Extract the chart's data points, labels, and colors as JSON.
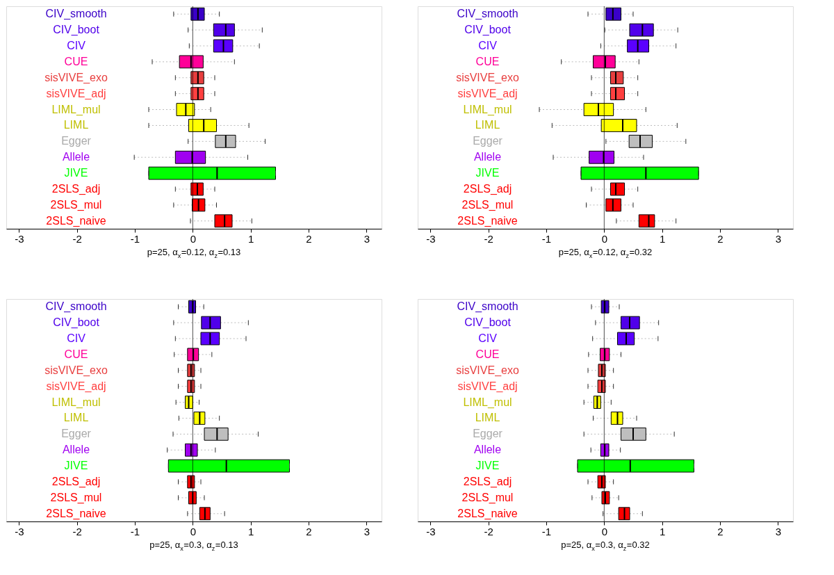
{
  "chart_data": [
    {
      "type": "box",
      "orientation": "horizontal",
      "categories": [
        "CIV_smooth",
        "CIV_boot",
        "CIV",
        "CUE",
        "sisVIVE_exo",
        "sisVIVE_adj",
        "LIML_mul",
        "LIML",
        "Egger",
        "Allele",
        "JIVE",
        "2SLS_adj",
        "2SLS_mul",
        "2SLS_naive"
      ],
      "colors": [
        "#3a00c8",
        "#5000ea",
        "#5a00ff",
        "#ff0098",
        "#e83e3e",
        "#ff4040",
        "#ffff00",
        "#ffff00",
        "#bebebe",
        "#a000f0",
        "#00ff00",
        "#ff0000",
        "#ff0000",
        "#ff0000"
      ],
      "boxes": [
        {
          "low": -0.33,
          "q1": -0.03,
          "median": 0.09,
          "q3": 0.2,
          "high": 0.46
        },
        {
          "low": -0.08,
          "q1": 0.36,
          "median": 0.57,
          "q3": 0.72,
          "high": 1.2
        },
        {
          "low": -0.06,
          "q1": 0.36,
          "median": 0.53,
          "q3": 0.69,
          "high": 1.15
        },
        {
          "low": -0.7,
          "q1": -0.23,
          "median": -0.03,
          "q3": 0.18,
          "high": 0.72
        },
        {
          "low": -0.3,
          "q1": -0.03,
          "median": 0.09,
          "q3": 0.19,
          "high": 0.38
        },
        {
          "low": -0.3,
          "q1": -0.03,
          "median": 0.09,
          "q3": 0.19,
          "high": 0.38
        },
        {
          "low": -0.76,
          "q1": -0.28,
          "median": -0.12,
          "q3": 0.03,
          "high": 0.31
        },
        {
          "low": -0.76,
          "q1": -0.07,
          "median": 0.19,
          "q3": 0.41,
          "high": 0.97
        },
        {
          "low": -0.08,
          "q1": 0.39,
          "median": 0.57,
          "q3": 0.74,
          "high": 1.25
        },
        {
          "low": -1.01,
          "q1": -0.3,
          "median": -0.01,
          "q3": 0.22,
          "high": 0.95
        },
        {
          "low": -0.76,
          "q1": -0.76,
          "median": 0.42,
          "q3": 1.43,
          "high": 1.43
        },
        {
          "low": -0.3,
          "q1": -0.03,
          "median": 0.08,
          "q3": 0.18,
          "high": 0.38
        },
        {
          "low": -0.33,
          "q1": -0.01,
          "median": 0.1,
          "q3": 0.21,
          "high": 0.41
        },
        {
          "low": -0.04,
          "q1": 0.38,
          "median": 0.55,
          "q3": 0.68,
          "high": 1.02
        }
      ],
      "xlabel": "p=25, α$_{x}$=0.12, α$_{z}$=0.13",
      "xlim": [
        -3.22,
        3.26
      ],
      "xticks": [
        -3,
        -2,
        -1,
        0,
        1,
        2,
        3
      ],
      "ref_lines": [
        {
          "axis": "x",
          "value": 0,
          "color": "#000000"
        }
      ],
      "grid": false,
      "legend": false
    },
    {
      "type": "box",
      "orientation": "horizontal",
      "categories": [
        "CIV_smooth",
        "CIV_boot",
        "CIV",
        "CUE",
        "sisVIVE_exo",
        "sisVIVE_adj",
        "LIML_mul",
        "LIML",
        "Egger",
        "Allele",
        "JIVE",
        "2SLS_adj",
        "2SLS_mul",
        "2SLS_naive"
      ],
      "colors": [
        "#3a00c8",
        "#5000ea",
        "#5a00ff",
        "#ff0098",
        "#e83e3e",
        "#ff4040",
        "#ffff00",
        "#ffff00",
        "#bebebe",
        "#a000f0",
        "#00ff00",
        "#ff0000",
        "#ff0000",
        "#ff0000"
      ],
      "boxes": [
        {
          "low": -0.28,
          "q1": 0.03,
          "median": 0.15,
          "q3": 0.29,
          "high": 0.5
        },
        {
          "low": 0.01,
          "q1": 0.44,
          "median": 0.66,
          "q3": 0.85,
          "high": 1.27
        },
        {
          "low": -0.06,
          "q1": 0.4,
          "median": 0.58,
          "q3": 0.77,
          "high": 1.24
        },
        {
          "low": -0.74,
          "q1": -0.19,
          "median": 0.02,
          "q3": 0.19,
          "high": 0.6
        },
        {
          "low": -0.22,
          "q1": 0.11,
          "median": 0.2,
          "q3": 0.33,
          "high": 0.58
        },
        {
          "low": -0.22,
          "q1": 0.11,
          "median": 0.2,
          "q3": 0.35,
          "high": 0.58
        },
        {
          "low": -1.12,
          "q1": -0.35,
          "median": -0.1,
          "q3": 0.16,
          "high": 0.72
        },
        {
          "low": -0.9,
          "q1": -0.05,
          "median": 0.32,
          "q3": 0.56,
          "high": 1.26
        },
        {
          "low": 0.03,
          "q1": 0.43,
          "median": 0.62,
          "q3": 0.83,
          "high": 1.41
        },
        {
          "low": -0.88,
          "q1": -0.26,
          "median": -0.01,
          "q3": 0.17,
          "high": 0.68
        },
        {
          "low": -0.4,
          "q1": -0.4,
          "median": 0.72,
          "q3": 1.63,
          "high": 1.63
        },
        {
          "low": -0.22,
          "q1": 0.11,
          "median": 0.2,
          "q3": 0.35,
          "high": 0.58
        },
        {
          "low": -0.31,
          "q1": 0.03,
          "median": 0.15,
          "q3": 0.29,
          "high": 0.5
        },
        {
          "low": 0.21,
          "q1": 0.6,
          "median": 0.77,
          "q3": 0.87,
          "high": 1.24
        }
      ],
      "xlabel": "p=25, α$_{x}$=0.12, α$_{z}$=0.32",
      "xlim": [
        -3.22,
        3.26
      ],
      "xticks": [
        -3,
        -2,
        -1,
        0,
        1,
        2,
        3
      ],
      "ref_lines": [
        {
          "axis": "x",
          "value": 0,
          "color": "#000000"
        }
      ],
      "grid": false,
      "legend": false
    },
    {
      "type": "box",
      "orientation": "horizontal",
      "categories": [
        "CIV_smooth",
        "CIV_boot",
        "CIV",
        "CUE",
        "sisVIVE_exo",
        "sisVIVE_adj",
        "LIML_mul",
        "LIML",
        "Egger",
        "Allele",
        "JIVE",
        "2SLS_adj",
        "2SLS_mul",
        "2SLS_naive"
      ],
      "colors": [
        "#3a00c8",
        "#5000ea",
        "#5a00ff",
        "#ff0098",
        "#e83e3e",
        "#ff4040",
        "#ffff00",
        "#ffff00",
        "#bebebe",
        "#a000f0",
        "#00ff00",
        "#ff0000",
        "#ff0000",
        "#ff0000"
      ],
      "boxes": [
        {
          "low": -0.25,
          "q1": -0.07,
          "median": 0.0,
          "q3": 0.05,
          "high": 0.19
        },
        {
          "low": -0.33,
          "q1": 0.15,
          "median": 0.3,
          "q3": 0.48,
          "high": 0.96
        },
        {
          "low": -0.3,
          "q1": 0.14,
          "median": 0.3,
          "q3": 0.46,
          "high": 0.92
        },
        {
          "low": -0.32,
          "q1": -0.09,
          "median": 0.01,
          "q3": 0.1,
          "high": 0.33
        },
        {
          "low": -0.25,
          "q1": -0.09,
          "median": -0.03,
          "q3": 0.03,
          "high": 0.14
        },
        {
          "low": -0.25,
          "q1": -0.09,
          "median": -0.03,
          "q3": 0.03,
          "high": 0.14
        },
        {
          "low": -0.29,
          "q1": -0.13,
          "median": -0.07,
          "q3": 0.0,
          "high": 0.11
        },
        {
          "low": -0.24,
          "q1": 0.02,
          "median": 0.12,
          "q3": 0.21,
          "high": 0.46
        },
        {
          "low": -0.34,
          "q1": 0.2,
          "median": 0.42,
          "q3": 0.61,
          "high": 1.13
        },
        {
          "low": -0.44,
          "q1": -0.13,
          "median": -0.03,
          "q3": 0.08,
          "high": 0.39
        },
        {
          "low": -0.42,
          "q1": -0.42,
          "median": 0.58,
          "q3": 1.67,
          "high": 1.67
        },
        {
          "low": -0.25,
          "q1": -0.09,
          "median": -0.03,
          "q3": 0.03,
          "high": 0.14
        },
        {
          "low": -0.25,
          "q1": -0.07,
          "median": 0.0,
          "q3": 0.06,
          "high": 0.2
        },
        {
          "low": -0.09,
          "q1": 0.12,
          "median": 0.21,
          "q3": 0.3,
          "high": 0.55
        }
      ],
      "xlabel": "p=25, α$_{x}$=0.3, α$_{z}$=0.13",
      "xlim": [
        -3.22,
        3.26
      ],
      "xticks": [
        -3,
        -2,
        -1,
        0,
        1,
        2,
        3
      ],
      "ref_lines": [
        {
          "axis": "x",
          "value": 0,
          "color": "#000000"
        }
      ],
      "grid": false,
      "legend": false
    },
    {
      "type": "box",
      "orientation": "horizontal",
      "categories": [
        "CIV_smooth",
        "CIV_boot",
        "CIV",
        "CUE",
        "sisVIVE_exo",
        "sisVIVE_adj",
        "LIML_mul",
        "LIML",
        "Egger",
        "Allele",
        "JIVE",
        "2SLS_adj",
        "2SLS_mul",
        "2SLS_naive"
      ],
      "colors": [
        "#3a00c8",
        "#5000ea",
        "#5a00ff",
        "#ff0098",
        "#e83e3e",
        "#ff4040",
        "#ffff00",
        "#ffff00",
        "#bebebe",
        "#a000f0",
        "#00ff00",
        "#ff0000",
        "#ff0000",
        "#ff0000"
      ],
      "boxes": [
        {
          "low": -0.22,
          "q1": -0.05,
          "median": 0.01,
          "q3": 0.08,
          "high": 0.26
        },
        {
          "low": -0.15,
          "q1": 0.29,
          "median": 0.44,
          "q3": 0.61,
          "high": 0.94
        },
        {
          "low": -0.2,
          "q1": 0.23,
          "median": 0.38,
          "q3": 0.52,
          "high": 0.93
        },
        {
          "low": -0.27,
          "q1": -0.07,
          "median": 0.01,
          "q3": 0.09,
          "high": 0.29
        },
        {
          "low": -0.28,
          "q1": -0.1,
          "median": -0.04,
          "q3": 0.02,
          "high": 0.16
        },
        {
          "low": -0.28,
          "q1": -0.11,
          "median": -0.04,
          "q3": 0.02,
          "high": 0.16
        },
        {
          "low": -0.35,
          "q1": -0.18,
          "median": -0.12,
          "q3": -0.06,
          "high": 0.12
        },
        {
          "low": -0.19,
          "q1": 0.12,
          "median": 0.23,
          "q3": 0.32,
          "high": 0.56
        },
        {
          "low": -0.35,
          "q1": 0.29,
          "median": 0.5,
          "q3": 0.72,
          "high": 1.21
        },
        {
          "low": -0.23,
          "q1": -0.06,
          "median": 0.01,
          "q3": 0.08,
          "high": 0.28
        },
        {
          "low": -0.46,
          "q1": -0.46,
          "median": 0.45,
          "q3": 1.55,
          "high": 1.55
        },
        {
          "low": -0.28,
          "q1": -0.11,
          "median": -0.04,
          "q3": 0.02,
          "high": 0.16
        },
        {
          "low": -0.21,
          "q1": -0.04,
          "median": 0.02,
          "q3": 0.09,
          "high": 0.25
        },
        {
          "low": -0.02,
          "q1": 0.25,
          "median": 0.35,
          "q3": 0.44,
          "high": 0.66
        }
      ],
      "xlabel": "p=25, α$_{x}$=0.3, α$_{z}$=0.32",
      "xlim": [
        -3.22,
        3.26
      ],
      "xticks": [
        -3,
        -2,
        -1,
        0,
        1,
        2,
        3
      ],
      "ref_lines": [
        {
          "axis": "x",
          "value": 0,
          "color": "#000000"
        }
      ],
      "grid": false,
      "legend": false
    }
  ]
}
